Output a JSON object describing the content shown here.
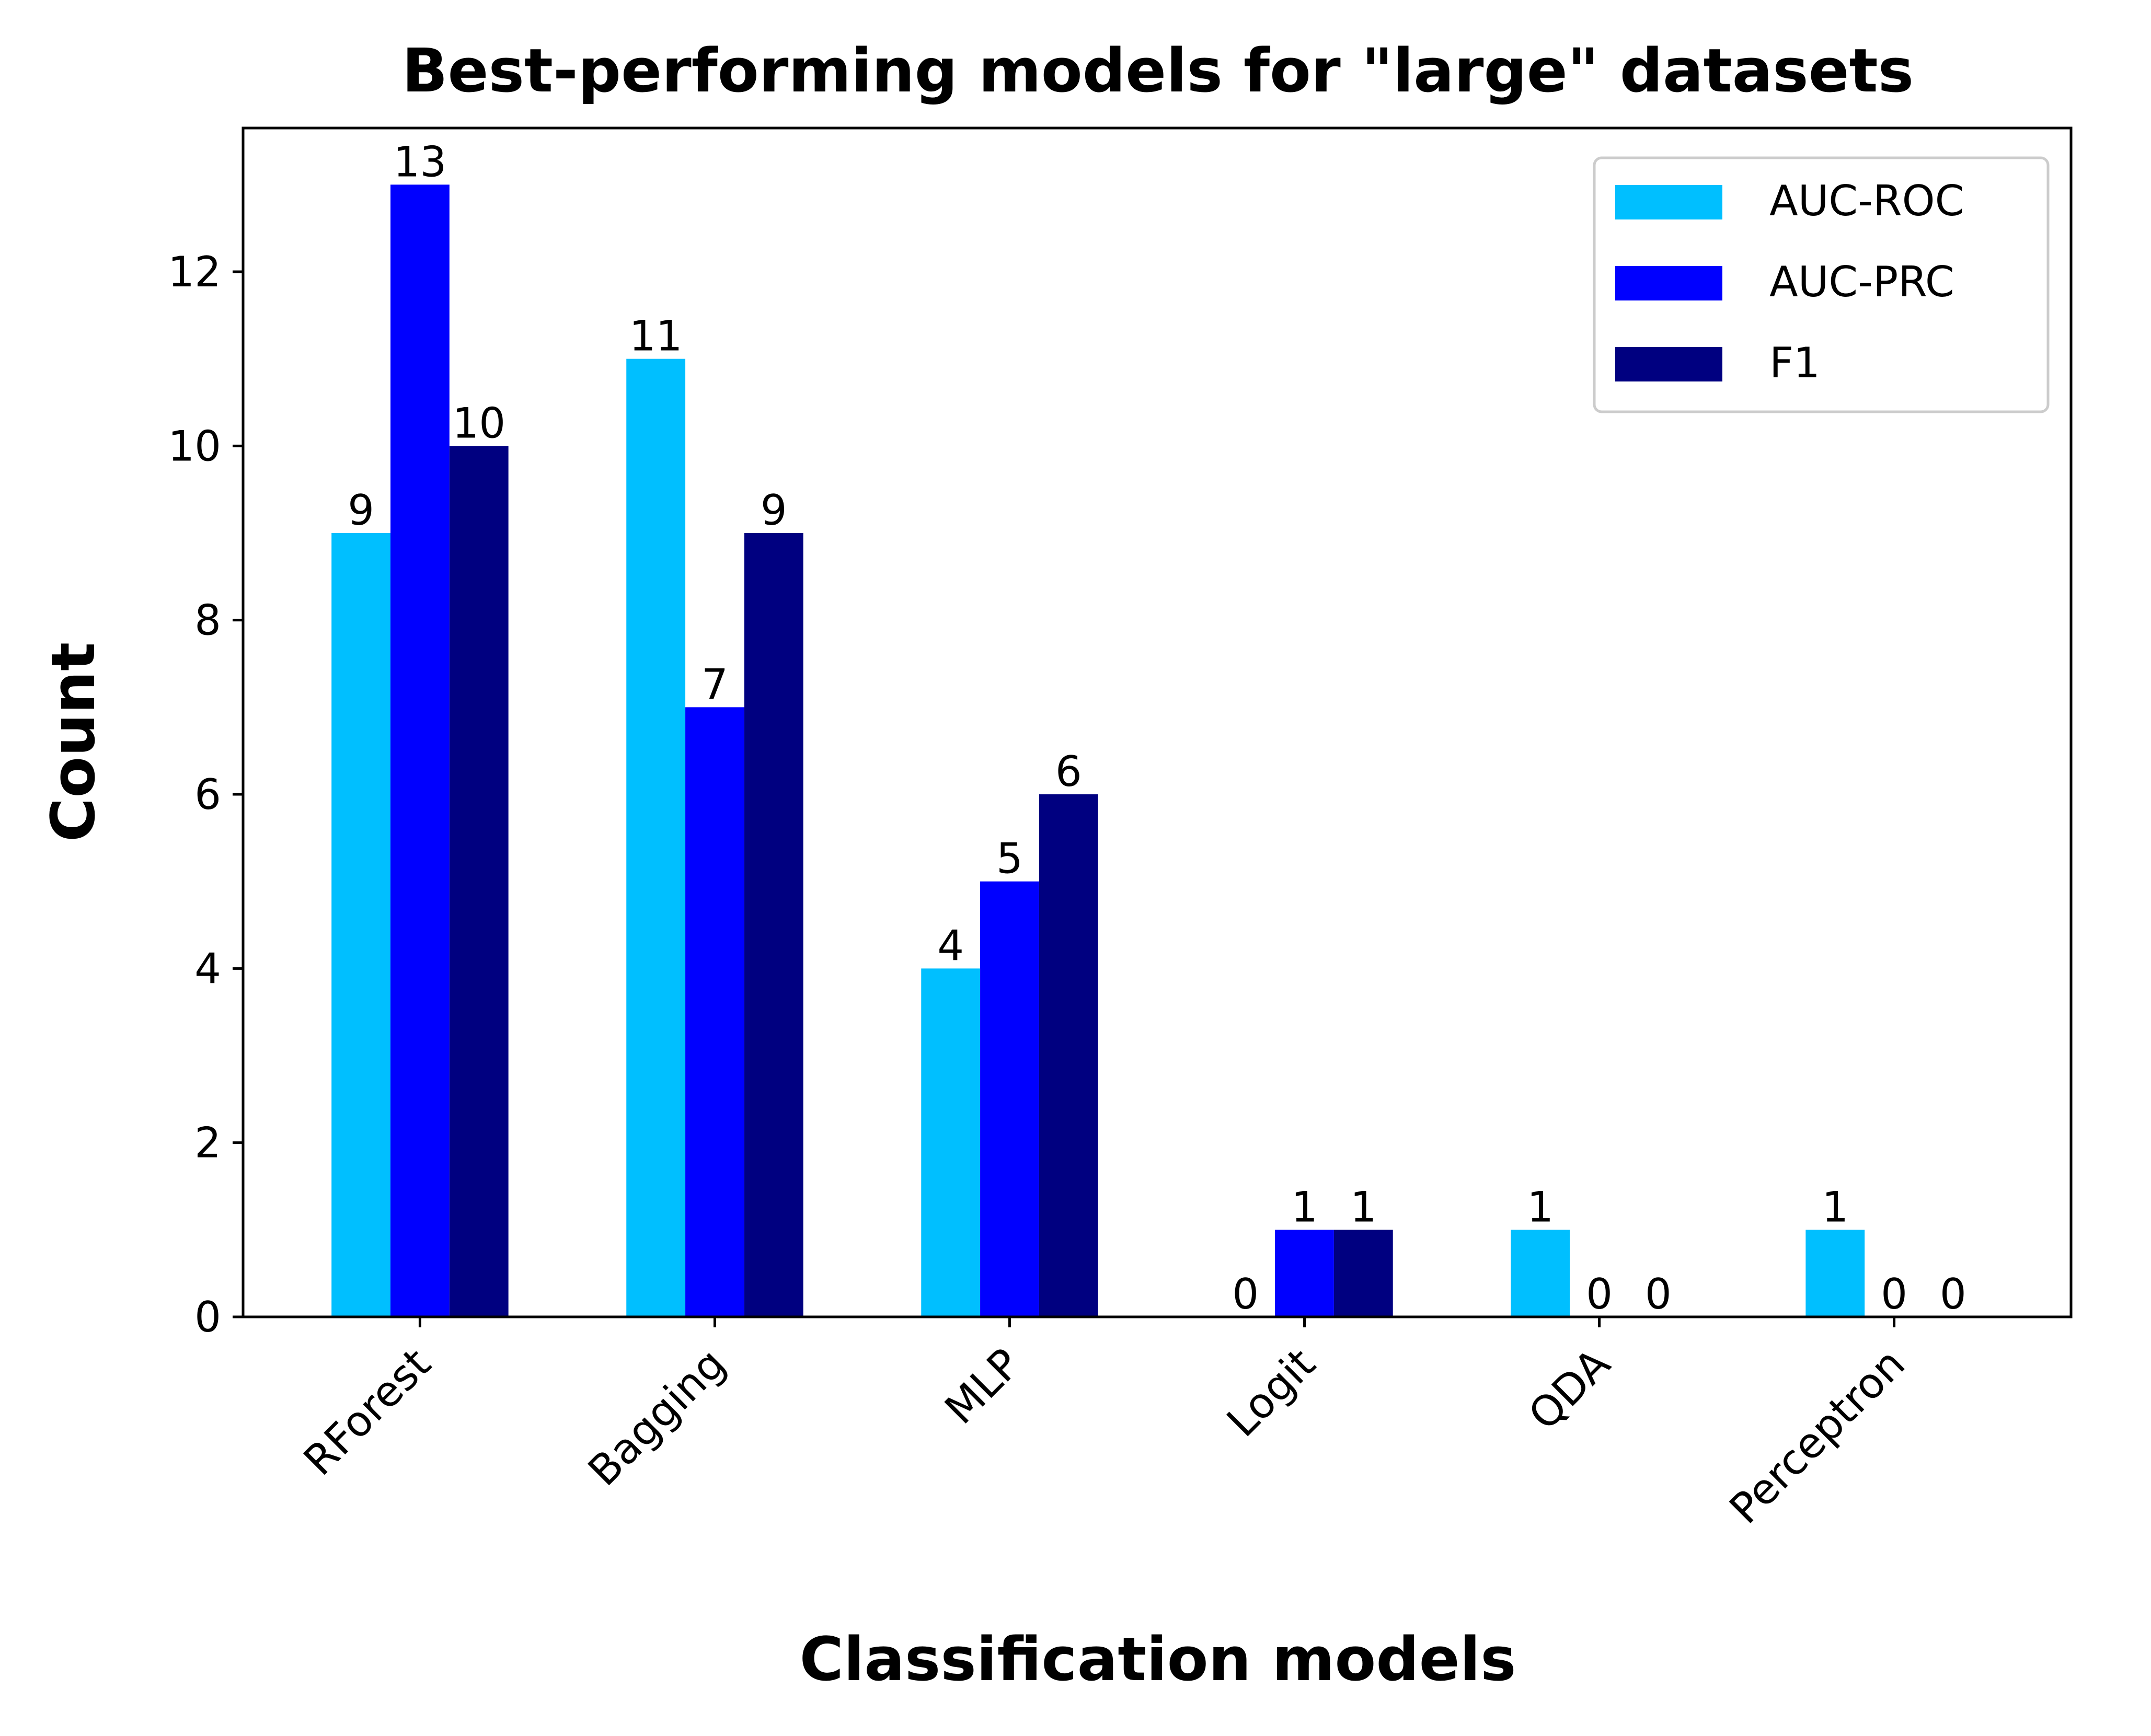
{
  "chart_data": {
    "type": "bar",
    "title": "Best-performing models for \"large\" datasets",
    "xlabel": "Classification models",
    "ylabel": "Count",
    "categories": [
      "RForest",
      "Bagging",
      "MLP",
      "Logit",
      "QDA",
      "Perceptron"
    ],
    "series": [
      {
        "name": "AUC-ROC",
        "color": "#00bfff",
        "values": [
          9,
          11,
          4,
          0,
          1,
          1
        ]
      },
      {
        "name": "AUC-PRC",
        "color": "#0000ff",
        "values": [
          13,
          7,
          5,
          1,
          0,
          0
        ]
      },
      {
        "name": "F1",
        "color": "#000080",
        "values": [
          10,
          9,
          6,
          1,
          0,
          0
        ]
      }
    ],
    "ylim": [
      0,
      13.65
    ],
    "yticks": [
      0,
      2,
      4,
      6,
      8,
      10,
      12
    ],
    "grid": false,
    "legend_position": "top-right",
    "data_labels": true
  }
}
